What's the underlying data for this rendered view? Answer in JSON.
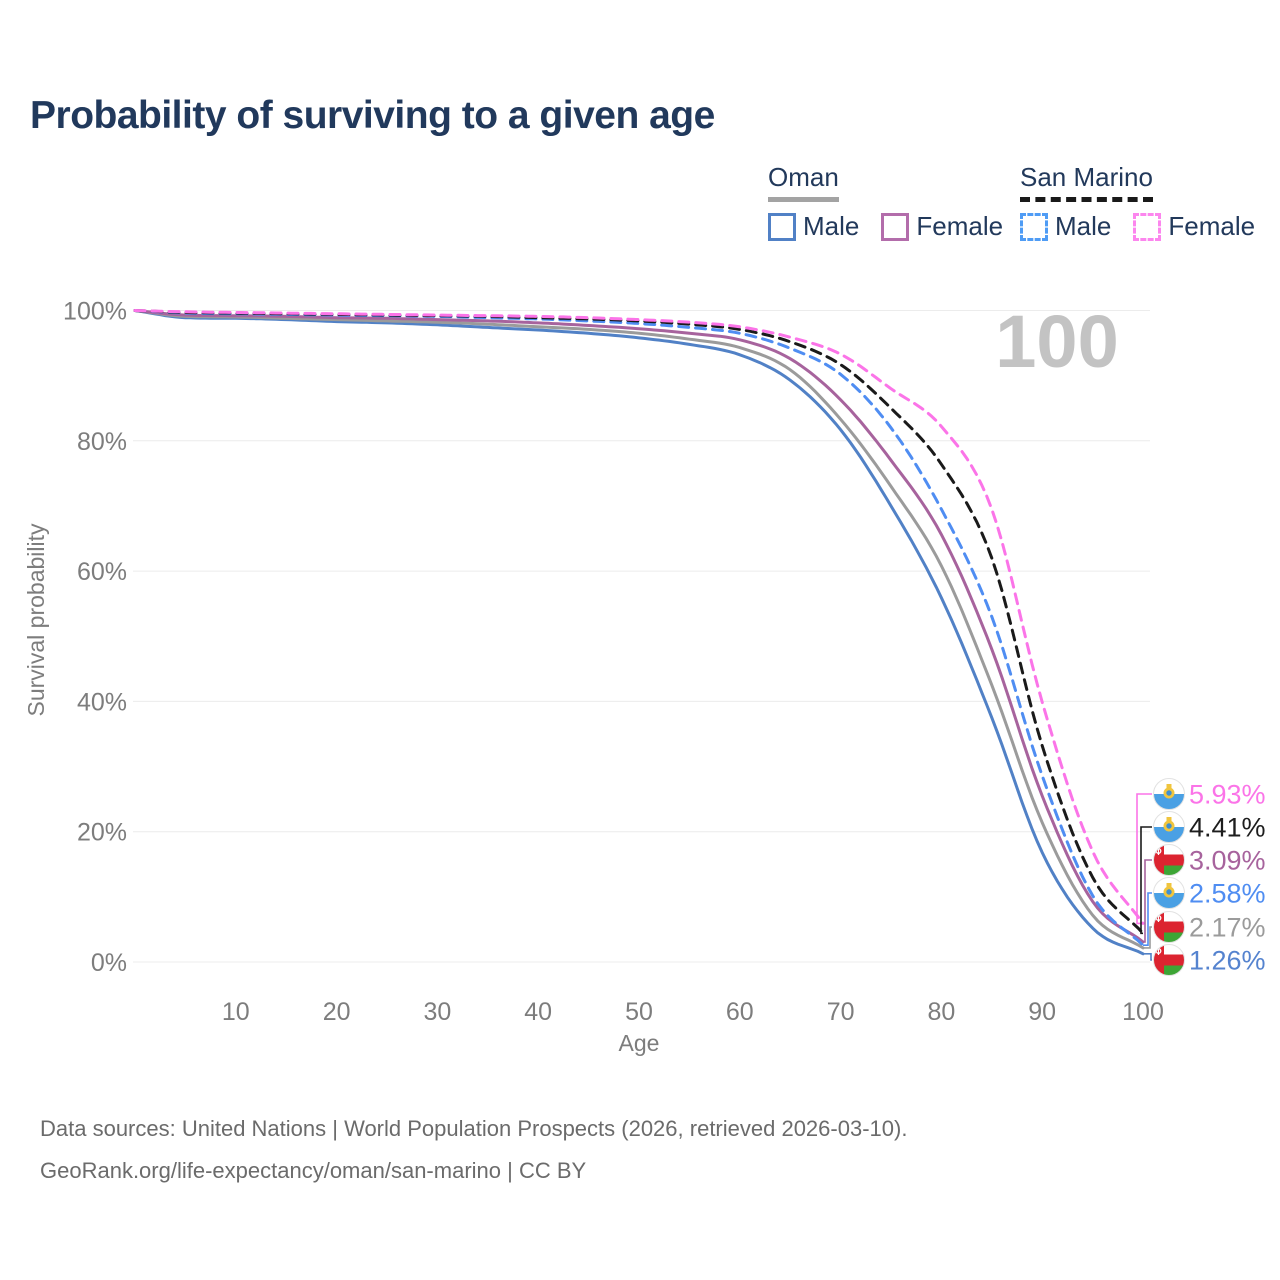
{
  "title": "Probability of surviving to a given age",
  "watermark": "100",
  "legend": {
    "groups": [
      {
        "label": "Oman",
        "line_style": "solid",
        "line_color": "#a3a3a3",
        "items": [
          {
            "label": "Male",
            "color": "#5181c6",
            "dashed": false
          },
          {
            "label": "Female",
            "color": "#b36dab",
            "dashed": false
          }
        ]
      },
      {
        "label": "San Marino",
        "line_style": "dashed",
        "line_color": "#1a1a1a",
        "items": [
          {
            "label": "Male",
            "color": "#4f9cf5",
            "dashed": true
          },
          {
            "label": "Female",
            "color": "#fc86ee",
            "dashed": true
          }
        ]
      }
    ]
  },
  "footer": {
    "line1": "Data sources: United Nations | World Population Prospects (2026, retrieved 2026-03-10).",
    "line2": "GeoRank.org/life-expectancy/oman/san-marino | CC BY"
  },
  "chart_data": {
    "type": "line",
    "title": "Probability of surviving to a given age",
    "xlabel": "Age",
    "ylabel": "Survival probability",
    "xlim": [
      0,
      100
    ],
    "ylim": [
      0,
      100
    ],
    "grid": "horizontal gridlines only, light gray",
    "legend_position": "top-right",
    "x": [
      0,
      5,
      10,
      15,
      20,
      25,
      30,
      35,
      40,
      45,
      50,
      55,
      60,
      65,
      70,
      75,
      80,
      85,
      90,
      95,
      100
    ],
    "xticks": {
      "values": [
        10,
        20,
        30,
        40,
        50,
        60,
        70,
        80,
        90,
        100
      ],
      "labels": [
        "10",
        "20",
        "30",
        "40",
        "50",
        "60",
        "70",
        "80",
        "90",
        "100"
      ]
    },
    "yticks": {
      "values": [
        0,
        20,
        40,
        60,
        80,
        100
      ],
      "labels": [
        "0%",
        "20%",
        "40%",
        "60%",
        "80%",
        "100%"
      ]
    },
    "series": [
      {
        "name": "Oman Male",
        "flag": "oman",
        "color": "#5181c6",
        "dashed": false,
        "end_value": 1.26,
        "end_label": "1.26%",
        "label_color": "#5583cf",
        "values": [
          100,
          98.9,
          98.8,
          98.6,
          98.3,
          98.1,
          97.8,
          97.4,
          97.0,
          96.5,
          95.8,
          94.8,
          93.2,
          89.3,
          81.7,
          70.0,
          55.9,
          37.5,
          16.8,
          5.2,
          1.26
        ]
      },
      {
        "name": "Oman",
        "flag": "oman",
        "color": "#9b9b9b",
        "dashed": false,
        "end_value": 2.17,
        "end_label": "2.17%",
        "label_color": "#9b9b9b",
        "values": [
          100,
          99.1,
          99.0,
          98.8,
          98.6,
          98.4,
          98.2,
          97.9,
          97.5,
          97.1,
          96.5,
          95.6,
          94.3,
          90.9,
          83.3,
          73.0,
          60.8,
          42.5,
          21.4,
          7.2,
          2.17
        ]
      },
      {
        "name": "Oman Female",
        "flag": "oman",
        "color": "#a7639d",
        "dashed": false,
        "end_value": 3.09,
        "end_label": "3.09%",
        "label_color": "#a7639d",
        "values": [
          100,
          99.3,
          99.2,
          99.1,
          98.9,
          98.8,
          98.6,
          98.4,
          98.1,
          97.7,
          97.2,
          96.5,
          95.5,
          92.6,
          86.3,
          77.0,
          65.6,
          48.0,
          25.5,
          9.3,
          3.09
        ]
      },
      {
        "name": "San Marino Male",
        "flag": "san-marino",
        "color": "#4f8df2",
        "dashed": true,
        "end_value": 2.58,
        "end_label": "2.58%",
        "label_color": "#4f8df2",
        "values": [
          100,
          99.6,
          99.5,
          99.4,
          99.3,
          99.2,
          99.1,
          98.9,
          98.7,
          98.4,
          98.0,
          97.4,
          96.5,
          94.2,
          90.2,
          82.0,
          69.5,
          53.0,
          28.6,
          10.2,
          2.58
        ]
      },
      {
        "name": "San Marino",
        "flag": "san-marino",
        "color": "#1a1a1a",
        "dashed": true,
        "end_value": 4.41,
        "end_label": "4.41%",
        "label_color": "#1d1d1d",
        "values": [
          100,
          99.7,
          99.6,
          99.5,
          99.4,
          99.3,
          99.2,
          99.1,
          98.9,
          98.7,
          98.4,
          97.9,
          97.1,
          95.2,
          91.7,
          85.0,
          76.4,
          62.0,
          33.2,
          13.0,
          4.41
        ]
      },
      {
        "name": "San Marino Female",
        "flag": "san-marino",
        "color": "#fb74e8",
        "dashed": true,
        "end_value": 5.93,
        "end_label": "5.93%",
        "label_color": "#fb74e8",
        "values": [
          100,
          99.8,
          99.7,
          99.6,
          99.5,
          99.4,
          99.3,
          99.2,
          99.1,
          98.9,
          98.6,
          98.2,
          97.5,
          95.9,
          93.3,
          88.0,
          82.2,
          69.5,
          39.9,
          17.0,
          5.93
        ]
      }
    ]
  }
}
